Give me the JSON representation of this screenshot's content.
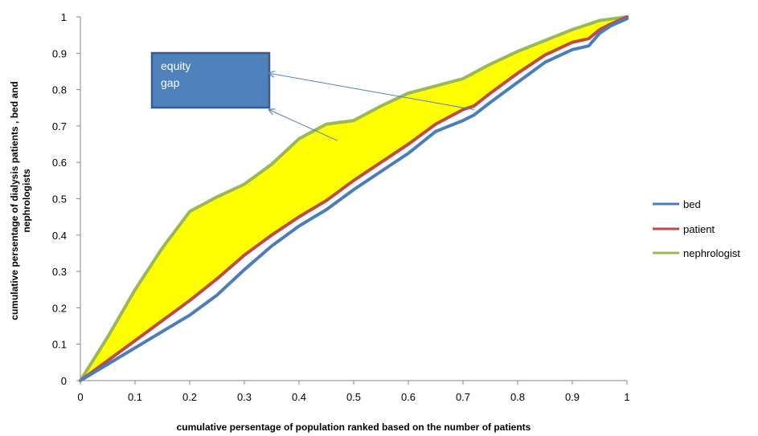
{
  "chart_data": {
    "type": "line",
    "title": "",
    "xlabel": "cumulative persentage of population  ranked based on the number of patients",
    "ylabel_line1": "cumulative persentage of dialysis  patients , bed and",
    "ylabel_line2": "nephrologists",
    "xlim": [
      0,
      1
    ],
    "ylim": [
      0,
      1
    ],
    "x_ticks": [
      "0",
      "0.1",
      "0.2",
      "0.3",
      "0.4",
      "0.5",
      "0.6",
      "0.7",
      "0.8",
      "0.9",
      "1"
    ],
    "y_ticks": [
      "0",
      "0.1",
      "0.2",
      "0.3",
      "0.4",
      "0.5",
      "0.6",
      "0.7",
      "0.8",
      "0.9",
      "1"
    ],
    "grid": false,
    "legend_position": "right",
    "series": [
      {
        "name": "bed",
        "color": "#4a7ebb",
        "points": [
          [
            0,
            0
          ],
          [
            0.05,
            0.045
          ],
          [
            0.1,
            0.09
          ],
          [
            0.15,
            0.135
          ],
          [
            0.2,
            0.18
          ],
          [
            0.25,
            0.235
          ],
          [
            0.3,
            0.305
          ],
          [
            0.35,
            0.37
          ],
          [
            0.4,
            0.425
          ],
          [
            0.45,
            0.47
          ],
          [
            0.5,
            0.525
          ],
          [
            0.55,
            0.575
          ],
          [
            0.6,
            0.625
          ],
          [
            0.65,
            0.685
          ],
          [
            0.7,
            0.715
          ],
          [
            0.72,
            0.73
          ],
          [
            0.75,
            0.765
          ],
          [
            0.8,
            0.82
          ],
          [
            0.85,
            0.875
          ],
          [
            0.9,
            0.91
          ],
          [
            0.93,
            0.92
          ],
          [
            0.95,
            0.955
          ],
          [
            0.97,
            0.975
          ],
          [
            1,
            0.995
          ]
        ]
      },
      {
        "name": "patient",
        "color": "#be4b48",
        "points": [
          [
            0,
            0
          ],
          [
            0.05,
            0.055
          ],
          [
            0.1,
            0.11
          ],
          [
            0.15,
            0.165
          ],
          [
            0.2,
            0.22
          ],
          [
            0.25,
            0.28
          ],
          [
            0.3,
            0.345
          ],
          [
            0.35,
            0.4
          ],
          [
            0.4,
            0.45
          ],
          [
            0.45,
            0.495
          ],
          [
            0.5,
            0.55
          ],
          [
            0.55,
            0.6
          ],
          [
            0.6,
            0.65
          ],
          [
            0.65,
            0.705
          ],
          [
            0.7,
            0.745
          ],
          [
            0.72,
            0.755
          ],
          [
            0.75,
            0.79
          ],
          [
            0.8,
            0.845
          ],
          [
            0.85,
            0.895
          ],
          [
            0.9,
            0.93
          ],
          [
            0.93,
            0.94
          ],
          [
            0.95,
            0.965
          ],
          [
            0.97,
            0.98
          ],
          [
            1,
            1
          ]
        ]
      },
      {
        "name": "nephrologist",
        "color": "#98b954",
        "points": [
          [
            0,
            0
          ],
          [
            0.05,
            0.12
          ],
          [
            0.1,
            0.25
          ],
          [
            0.15,
            0.365
          ],
          [
            0.2,
            0.465
          ],
          [
            0.25,
            0.505
          ],
          [
            0.3,
            0.54
          ],
          [
            0.35,
            0.595
          ],
          [
            0.4,
            0.665
          ],
          [
            0.45,
            0.705
          ],
          [
            0.5,
            0.715
          ],
          [
            0.55,
            0.755
          ],
          [
            0.6,
            0.79
          ],
          [
            0.65,
            0.81
          ],
          [
            0.7,
            0.83
          ],
          [
            0.75,
            0.87
          ],
          [
            0.8,
            0.905
          ],
          [
            0.85,
            0.935
          ],
          [
            0.9,
            0.965
          ],
          [
            0.93,
            0.98
          ],
          [
            0.95,
            0.99
          ],
          [
            1,
            1
          ]
        ]
      }
    ],
    "equity_gap_fill_color": "#ffff00",
    "annotation": {
      "text_line1": "equity",
      "text_line2": "gap",
      "box_color": "#4f81bd",
      "arrow_tips": [
        [
          0.345,
          0.845
        ],
        [
          0.345,
          0.745
        ]
      ],
      "arrow_tails": [
        [
          0.72,
          0.745
        ],
        [
          0.47,
          0.66
        ]
      ]
    }
  }
}
